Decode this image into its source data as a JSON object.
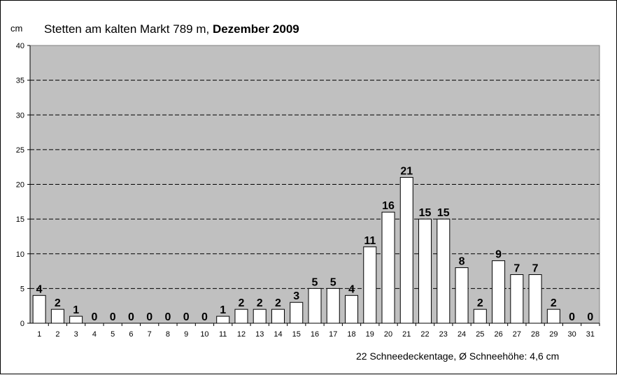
{
  "chart_data": {
    "type": "bar",
    "title": "Stetten am kalten Markt 789 m,",
    "title_bold": "Dezember 2009",
    "ylabel": "cm",
    "xlabel": "",
    "ylim": [
      0,
      40
    ],
    "yticks": [
      0,
      5,
      10,
      15,
      20,
      25,
      30,
      35,
      40
    ],
    "grid": true,
    "categories": [
      "1",
      "2",
      "3",
      "4",
      "5",
      "6",
      "7",
      "8",
      "9",
      "10",
      "11",
      "12",
      "13",
      "14",
      "15",
      "16",
      "17",
      "18",
      "19",
      "20",
      "21",
      "22",
      "23",
      "24",
      "25",
      "26",
      "27",
      "28",
      "29",
      "30",
      "31"
    ],
    "values": [
      4,
      2,
      1,
      0,
      0,
      0,
      0,
      0,
      0,
      0,
      1,
      2,
      2,
      2,
      3,
      5,
      5,
      4,
      11,
      16,
      21,
      15,
      15,
      8,
      2,
      9,
      7,
      7,
      2,
      0,
      0
    ],
    "footer": "22 Schneedeckentage,  Ø Schneehöhe:  4,6 cm",
    "colors": {
      "plot_bg": "#c0c0c0",
      "bar": "#ffffff",
      "border": "#000000"
    }
  }
}
